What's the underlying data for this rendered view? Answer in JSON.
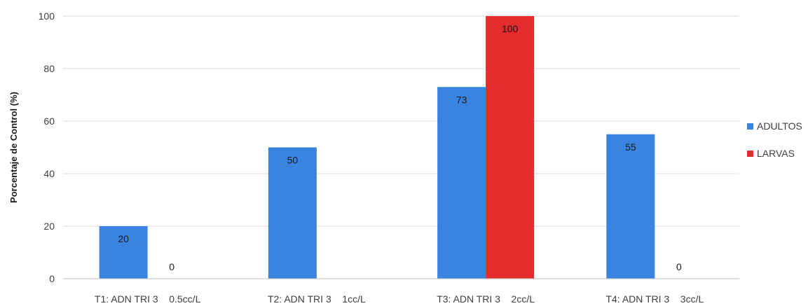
{
  "chart_data": {
    "type": "bar",
    "categories": [
      "T1: ADN TRI 3    0.5cc/L",
      "T2: ADN TRI 3    1cc/L",
      "T3: ADN TRI 3    2cc/L",
      "T4: ADN TRI 3    3cc/L"
    ],
    "series": [
      {
        "name": "ADULTOS",
        "values": [
          20,
          50,
          73,
          55
        ],
        "color": "#3b83e0"
      },
      {
        "name": "LARVAS",
        "values": [
          0,
          0,
          100,
          0
        ],
        "color": "#e52b2b"
      }
    ],
    "data_labels": [
      [
        "20",
        "50",
        "73",
        "55"
      ],
      [
        "0",
        "",
        "100",
        "0"
      ]
    ],
    "ylabel": "Porcentaje de Control (%)",
    "ylim": [
      0,
      100
    ],
    "yticks": [
      0,
      20,
      40,
      60,
      80,
      100
    ],
    "grid": true,
    "legend_position": "right"
  }
}
